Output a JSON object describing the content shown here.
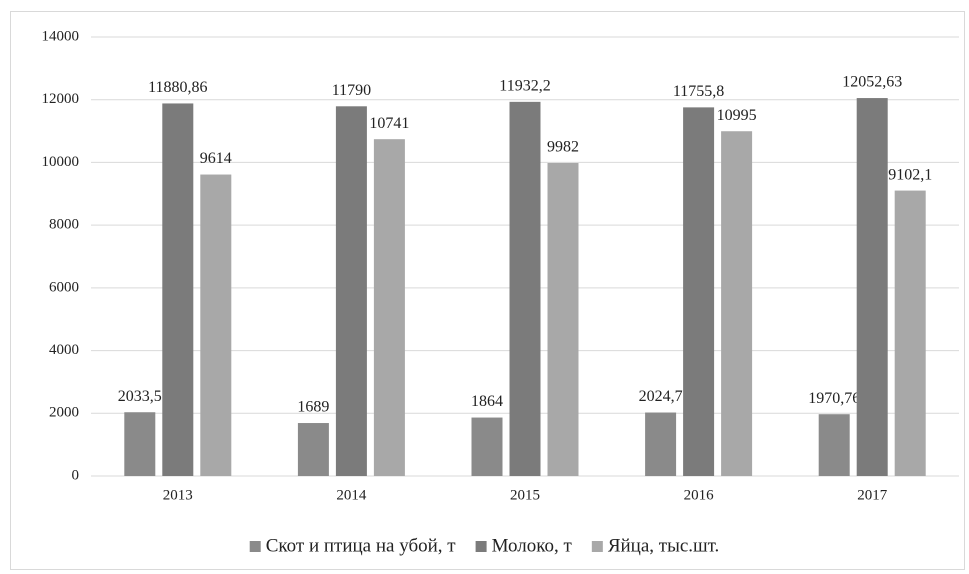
{
  "chart_data": {
    "type": "bar",
    "categories": [
      "2013",
      "2014",
      "2015",
      "2016",
      "2017"
    ],
    "series": [
      {
        "name": "Скот и птица на убой, т",
        "color": "#8a8a8a",
        "values": [
          2033.5,
          1689,
          1864,
          2024.7,
          1970.76
        ],
        "value_labels": [
          "2033,5",
          "1689",
          "1864",
          "2024,7",
          "1970,76"
        ]
      },
      {
        "name": "Молоко, т",
        "color": "#7b7b7b",
        "values": [
          11880.86,
          11790,
          11932.2,
          11755.8,
          12052.63
        ],
        "value_labels": [
          "11880,86",
          "11790",
          "11932,2",
          "11755,8",
          "12052,63"
        ]
      },
      {
        "name": "Яйца, тыс.шт.",
        "color": "#a8a8a8",
        "values": [
          9614,
          10741,
          9982,
          10995,
          9102.1
        ],
        "value_labels": [
          "9614",
          "10741",
          "9982",
          "10995",
          "9102,1"
        ]
      }
    ],
    "ylim": [
      0,
      14000
    ],
    "yticks": [
      0,
      2000,
      4000,
      6000,
      8000,
      10000,
      12000,
      14000
    ],
    "grid": true,
    "legend": "bottom"
  }
}
